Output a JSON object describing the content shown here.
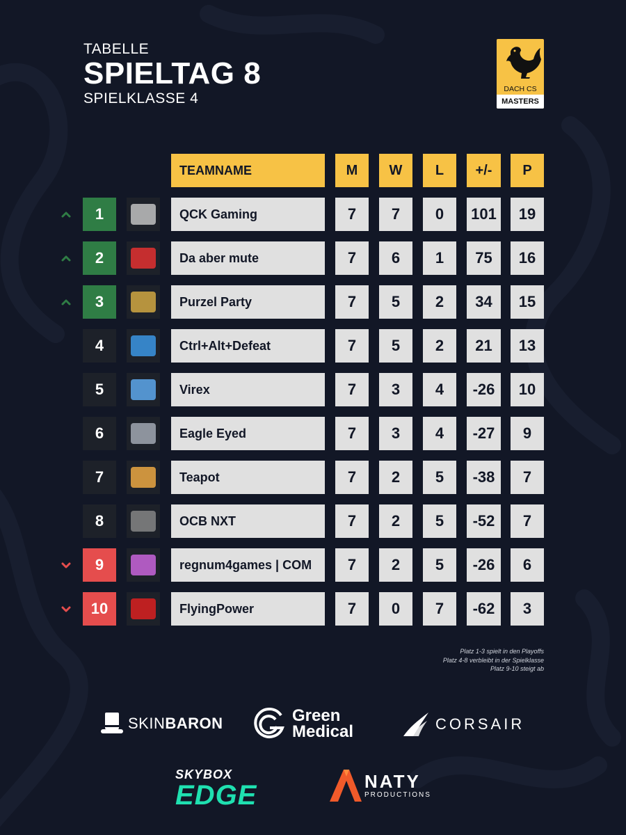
{
  "header": {
    "label": "TABELLE",
    "title": "SPIELTAG 8",
    "subtitle": "SPIELKLASSE 4"
  },
  "league_logo": {
    "line1": "DACH CS",
    "line2": "MASTERS",
    "icon": "rooster-icon",
    "color": "#f7c245"
  },
  "table": {
    "headers": {
      "team": "TEAMNAME",
      "m": "M",
      "w": "W",
      "l": "L",
      "diff": "+/-",
      "p": "P"
    },
    "rows": [
      {
        "rank": "1",
        "trend": "up",
        "team": "QCK Gaming",
        "m": "7",
        "w": "7",
        "l": "0",
        "diff": "101",
        "p": "19"
      },
      {
        "rank": "2",
        "trend": "up",
        "team": "Da aber mute",
        "m": "7",
        "w": "6",
        "l": "1",
        "diff": "75",
        "p": "16"
      },
      {
        "rank": "3",
        "trend": "up",
        "team": "Purzel Party",
        "m": "7",
        "w": "5",
        "l": "2",
        "diff": "34",
        "p": "15"
      },
      {
        "rank": "4",
        "trend": "hold",
        "team": "Ctrl+Alt+Defeat",
        "m": "7",
        "w": "5",
        "l": "2",
        "diff": "21",
        "p": "13"
      },
      {
        "rank": "5",
        "trend": "hold",
        "team": "Virex",
        "m": "7",
        "w": "3",
        "l": "4",
        "diff": "-26",
        "p": "10"
      },
      {
        "rank": "6",
        "trend": "hold",
        "team": "Eagle Eyed",
        "m": "7",
        "w": "3",
        "l": "4",
        "diff": "-27",
        "p": "9"
      },
      {
        "rank": "7",
        "trend": "hold",
        "team": "Teapot",
        "m": "7",
        "w": "2",
        "l": "5",
        "diff": "-38",
        "p": "7"
      },
      {
        "rank": "8",
        "trend": "hold",
        "team": "OCB NXT",
        "m": "7",
        "w": "2",
        "l": "5",
        "diff": "-52",
        "p": "7"
      },
      {
        "rank": "9",
        "trend": "down",
        "team": "regnum4games | COM",
        "m": "7",
        "w": "2",
        "l": "5",
        "diff": "-26",
        "p": "6"
      },
      {
        "rank": "10",
        "trend": "down",
        "team": "FlyingPower",
        "m": "7",
        "w": "0",
        "l": "7",
        "diff": "-62",
        "p": "3"
      }
    ]
  },
  "notes": [
    "Platz 1-3 spielt in den Playoffs",
    "Platz 4-8 verbleibt in der Spielklasse",
    "Platz 9-10 steigt ab"
  ],
  "sponsors": {
    "skinbaron": {
      "light": "SKIN",
      "bold": "BARON"
    },
    "green_medical": {
      "line1": "Green",
      "line2": "Medical"
    },
    "corsair": "CORSAIR",
    "skybox": {
      "line1": "SKYBOX",
      "line2": "EDGE"
    },
    "anaty": {
      "line1": "NATY",
      "line2": "PRODUCTIONS"
    }
  },
  "colors": {
    "background": "#121726",
    "accent": "#f7c245",
    "up": "#2f7d45",
    "hold": "#1d2129",
    "down": "#e54d4d",
    "cell": "#e0e0e0"
  }
}
